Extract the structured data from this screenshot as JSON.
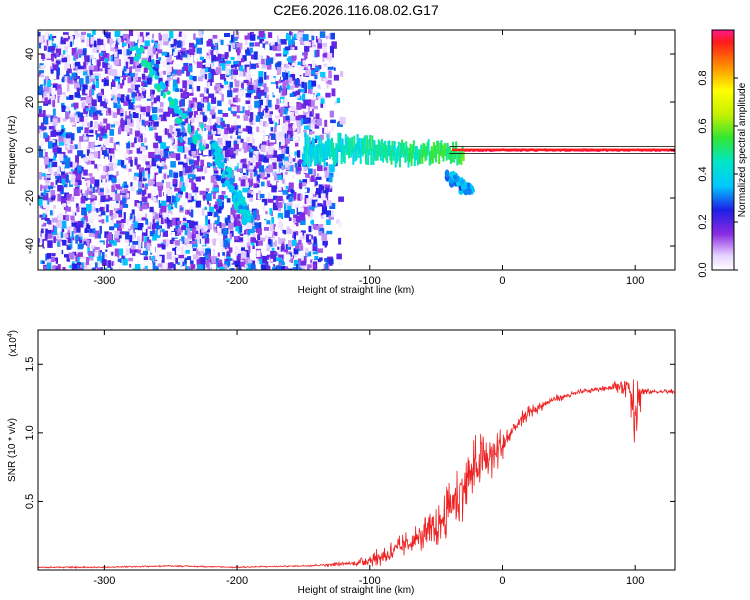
{
  "title": "C2E6.2026.116.08.02.G17",
  "chart_data": [
    {
      "type": "heatmap",
      "xlabel": "Height of straight line (km)",
      "ylabel": "Frequency (Hz)",
      "xlim": [
        -350,
        130
      ],
      "ylim": [
        -50,
        50
      ],
      "x_ticks": [
        -300,
        -200,
        -100,
        0,
        100
      ],
      "y_ticks": [
        -40,
        -20,
        0,
        20,
        40
      ],
      "colorbar": {
        "label": "Normalized spectral amplitude",
        "range": [
          0.0,
          1.0
        ],
        "ticks": [
          "0.0",
          "0.2",
          "0.4",
          "0.6",
          "0.8"
        ]
      },
      "features": [
        {
          "name": "noise region",
          "x_range": [
            -350,
            -120
          ],
          "y_range": [
            -50,
            50
          ],
          "amplitude": 0.2
        },
        {
          "name": "diagonal streak A",
          "from": [
            -280,
            45
          ],
          "to": [
            -225,
            0
          ],
          "amplitude": 0.35
        },
        {
          "name": "diagonal streak B",
          "from": [
            -225,
            10
          ],
          "to": [
            -195,
            -25
          ],
          "amplitude": 0.3
        },
        {
          "name": "diagonal streak C",
          "from": [
            -200,
            -20
          ],
          "to": [
            -190,
            -30
          ],
          "amplitude": 0.3
        },
        {
          "name": "tail streak",
          "from": [
            -40,
            -10
          ],
          "to": [
            -25,
            -17
          ],
          "amplitude": 0.25
        },
        {
          "name": "0 Hz carrier",
          "x_range": [
            -150,
            130
          ],
          "frequency": 0,
          "amplitude_range": [
            0.4,
            1.0
          ]
        }
      ]
    },
    {
      "type": "line",
      "xlabel": "Height of straight line (km)",
      "ylabel": "SNR (10 * v/v)",
      "multiplier": "(x10",
      "multiplier_exp": "4",
      "xlim": [
        -350,
        130
      ],
      "ylim": [
        0,
        1.75
      ],
      "x_ticks": [
        -300,
        -200,
        -100,
        0,
        100
      ],
      "y_ticks": [
        0.5,
        1.0,
        1.5
      ],
      "series": [
        {
          "name": "SNR",
          "color": "#ee2222",
          "x": [
            -350,
            -300,
            -250,
            -200,
            -150,
            -110,
            -90,
            -70,
            -50,
            -40,
            -30,
            -20,
            -10,
            0,
            10,
            20,
            30,
            40,
            60,
            80,
            95,
            100,
            105,
            110,
            130
          ],
          "y": [
            0.02,
            0.02,
            0.03,
            0.02,
            0.03,
            0.05,
            0.1,
            0.2,
            0.3,
            0.45,
            0.6,
            0.75,
            0.82,
            0.9,
            1.05,
            1.15,
            1.2,
            1.25,
            1.3,
            1.33,
            1.35,
            1.2,
            1.3,
            1.3,
            1.3
          ],
          "noise": [
            0.005,
            0.005,
            0.005,
            0.005,
            0.005,
            0.02,
            0.08,
            0.1,
            0.15,
            0.2,
            0.25,
            0.25,
            0.2,
            0.15,
            0.08,
            0.05,
            0.04,
            0.03,
            0.02,
            0.02,
            0.1,
            0.35,
            0.1,
            0.02,
            0.02
          ]
        }
      ]
    }
  ]
}
